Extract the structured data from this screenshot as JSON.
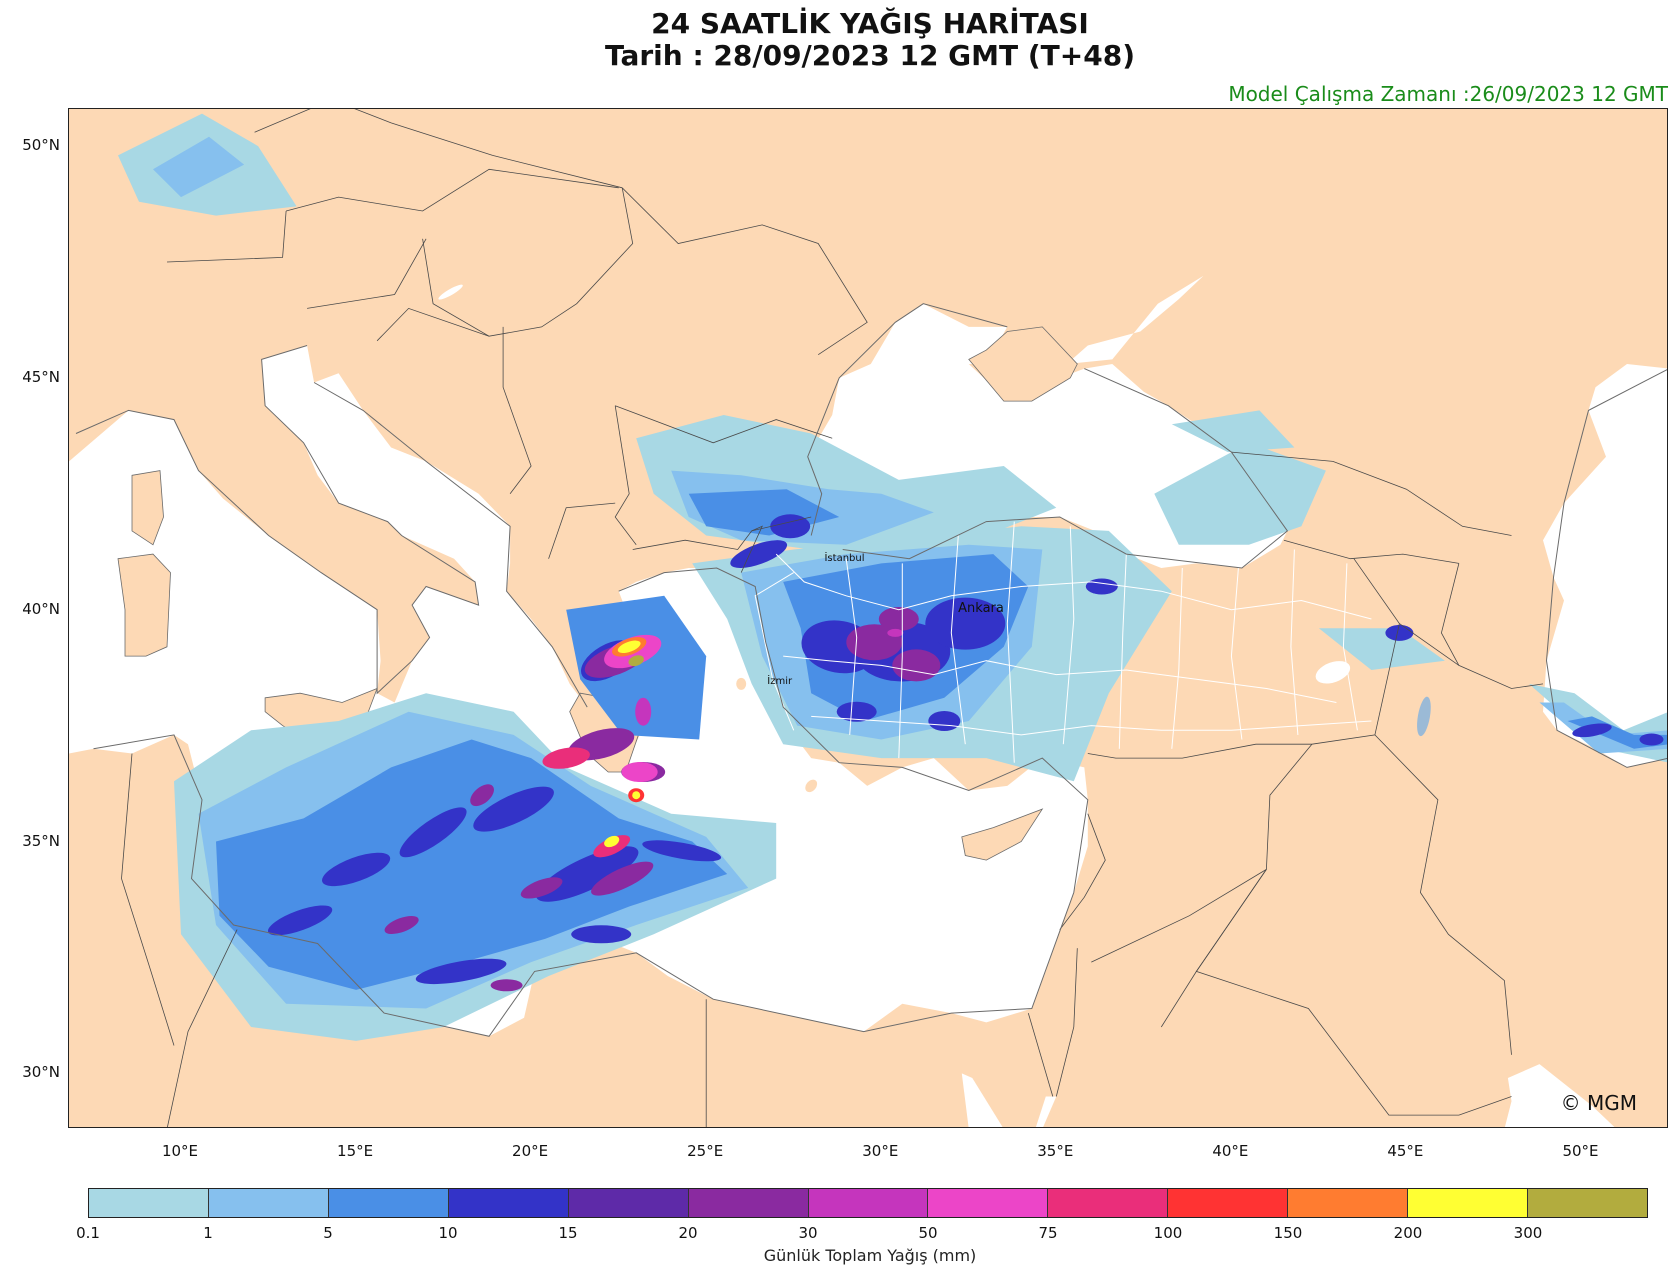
{
  "title": {
    "line1": "24 SAATLİK YAĞIŞ HARİTASI",
    "line2": "Tarih : 28/09/2023  12 GMT (T+48)"
  },
  "model_run": "Model Çalışma Zamanı :26/09/2023  12 GMT",
  "map": {
    "lon_range": [
      6.8,
      52.5
    ],
    "lat_range": [
      28.8,
      50.8
    ],
    "lat_ticks": [
      {
        "value": 50,
        "label": "50°N"
      },
      {
        "value": 45,
        "label": "45°N"
      },
      {
        "value": 40,
        "label": "40°N"
      },
      {
        "value": 35,
        "label": "35°N"
      },
      {
        "value": 30,
        "label": "30°N"
      }
    ],
    "lon_ticks": [
      {
        "value": 10,
        "label": "10°E"
      },
      {
        "value": 15,
        "label": "15°E"
      },
      {
        "value": 20,
        "label": "20°E"
      },
      {
        "value": 25,
        "label": "25°E"
      },
      {
        "value": 30,
        "label": "30°E"
      },
      {
        "value": 35,
        "label": "35°E"
      },
      {
        "value": 40,
        "label": "40°E"
      },
      {
        "value": 45,
        "label": "45°E"
      },
      {
        "value": 50,
        "label": "50°E"
      }
    ],
    "cities": [
      {
        "name": "İstanbul",
        "lon": 28.95,
        "lat": 41.05
      },
      {
        "name": "Ankara",
        "lon": 32.85,
        "lat": 39.95
      },
      {
        "name": "İzmir",
        "lon": 27.1,
        "lat": 38.4
      }
    ],
    "land_color": "#fdd9b5",
    "sea_color": "#ffffff",
    "copyright": "© MGM"
  },
  "colorbar": {
    "title": "Günlük Toplam Yağış (mm)",
    "ticks": [
      "0.1",
      "1",
      "5",
      "10",
      "15",
      "20",
      "30",
      "50",
      "75",
      "100",
      "150",
      "200",
      "300"
    ],
    "colors": [
      "#a8d8e4",
      "#86c0ee",
      "#4a8fe6",
      "#3333c8",
      "#5e2aa8",
      "#8a2aa0",
      "#c535bd",
      "#ec45c8",
      "#ea2e7a",
      "#ff3333",
      "#ff7c30",
      "#ffff33",
      "#b2ac3e"
    ]
  }
}
